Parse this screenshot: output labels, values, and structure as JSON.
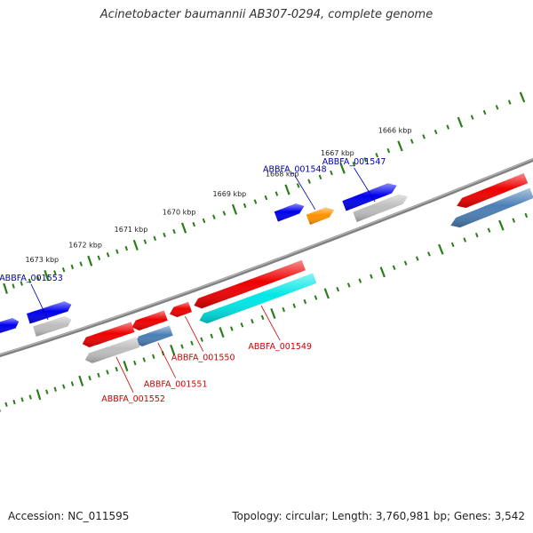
{
  "header": {
    "title": "Acinetobacter baumannii AB307-0294, complete genome"
  },
  "footer": {
    "accession": "Accession: NC_011595",
    "summary": "Topology: circular; Length: 3,760,981 bp; Genes: 3,542"
  },
  "colors": {
    "background": "#ffffff",
    "backbone": "#808080",
    "tick": "#2a7d1a",
    "forward_gene": "#0000ee",
    "reverse_gene": "#ee0000",
    "grey_gene": "#bdbdbd",
    "steel_gene": "#4a7fb5",
    "cyan_gene": "#00e6e6",
    "orange_gene": "#ff9200",
    "label_forward": "#0000aa",
    "label_reverse": "#cc0000"
  },
  "ruler": {
    "unit": "kbp",
    "ticks": [
      {
        "value": 1666,
        "label": "1666 kbp"
      },
      {
        "value": 1667,
        "label": "1667 kbp"
      },
      {
        "value": 1668,
        "label": "1668 kbp"
      },
      {
        "value": 1669,
        "label": "1669 kbp"
      },
      {
        "value": 1670,
        "label": "1670 kbp"
      },
      {
        "value": 1671,
        "label": "1671 kbp"
      },
      {
        "value": 1672,
        "label": "1672 kbp"
      },
      {
        "value": 1673,
        "label": "1673 kbp"
      }
    ]
  },
  "features": [
    {
      "id": "f_forward_a",
      "strand": "forward",
      "start": 1666.3,
      "end": 1667.1,
      "color": "grey_gene",
      "track": 1
    },
    {
      "id": "f_forward_b",
      "strand": "forward",
      "start": 1666.4,
      "end": 1667.2,
      "color": "forward_gene",
      "track": 2
    },
    {
      "id": "f_orange",
      "strand": "forward",
      "start": 1667.5,
      "end": 1667.85,
      "color": "orange_gene",
      "track": 2
    },
    {
      "id": "f_forward_c",
      "strand": "forward",
      "start": 1667.95,
      "end": 1668.35,
      "color": "forward_gene",
      "track": 3
    },
    {
      "id": "f_reverse_right1",
      "strand": "reverse",
      "start": 1664.4,
      "end": 1665.4,
      "color": "reverse_gene",
      "track": 1
    },
    {
      "id": "f_reverse_right2",
      "strand": "reverse",
      "start": 1664.4,
      "end": 1665.6,
      "color": "steel_gene",
      "track": 2
    },
    {
      "id": "f_1549a",
      "strand": "reverse",
      "start": 1668.2,
      "end": 1670.2,
      "color": "reverse_gene",
      "track": 1
    },
    {
      "id": "f_1549b",
      "strand": "reverse",
      "start": 1668.1,
      "end": 1670.2,
      "color": "cyan_gene",
      "track": 2
    },
    {
      "id": "f_1550",
      "strand": "reverse",
      "start": 1670.4,
      "end": 1670.7,
      "color": "reverse_gene",
      "track": 1
    },
    {
      "id": "f_1551a",
      "strand": "reverse",
      "start": 1670.9,
      "end": 1671.5,
      "color": "reverse_gene",
      "track": 1
    },
    {
      "id": "f_1551b",
      "strand": "reverse",
      "start": 1670.9,
      "end": 1671.55,
      "color": "steel_gene",
      "track": 2
    },
    {
      "id": "f_1552a",
      "strand": "reverse",
      "start": 1671.6,
      "end": 1672.6,
      "color": "reverse_gene",
      "track": 1
    },
    {
      "id": "f_1552b",
      "strand": "reverse",
      "start": 1671.6,
      "end": 1672.65,
      "color": "grey_gene",
      "track": 2
    },
    {
      "id": "f_1553a",
      "strand": "forward",
      "start": 1672.9,
      "end": 1673.65,
      "color": "grey_gene",
      "track": 1
    },
    {
      "id": "f_1553b",
      "strand": "forward",
      "start": 1672.8,
      "end": 1673.7,
      "color": "forward_gene",
      "track": 2
    },
    {
      "id": "f_left_edge",
      "strand": "forward",
      "start": 1674.05,
      "end": 1674.5,
      "color": "forward_gene",
      "track": 2
    }
  ],
  "labels": [
    {
      "id": "ABBFA_001547",
      "text": "ABBFA_001547",
      "strand": "forward",
      "points_at": "f_forward_a"
    },
    {
      "id": "ABBFA_001548",
      "text": "ABBFA_001548",
      "strand": "forward",
      "points_at": "f_orange"
    },
    {
      "id": "ABBFA_001549",
      "text": "ABBFA_001549",
      "strand": "reverse",
      "points_at": "f_1549b"
    },
    {
      "id": "ABBFA_001550",
      "text": "ABBFA_001550",
      "strand": "reverse",
      "points_at": "f_1550"
    },
    {
      "id": "ABBFA_001551",
      "text": "ABBFA_001551",
      "strand": "reverse",
      "points_at": "f_1551b"
    },
    {
      "id": "ABBFA_001552",
      "text": "ABBFA_001552",
      "strand": "reverse",
      "points_at": "f_1552b"
    },
    {
      "id": "ABBFA_001553",
      "text": "ABBFA_001553",
      "strand": "forward",
      "points_at": "f_1553a"
    }
  ]
}
